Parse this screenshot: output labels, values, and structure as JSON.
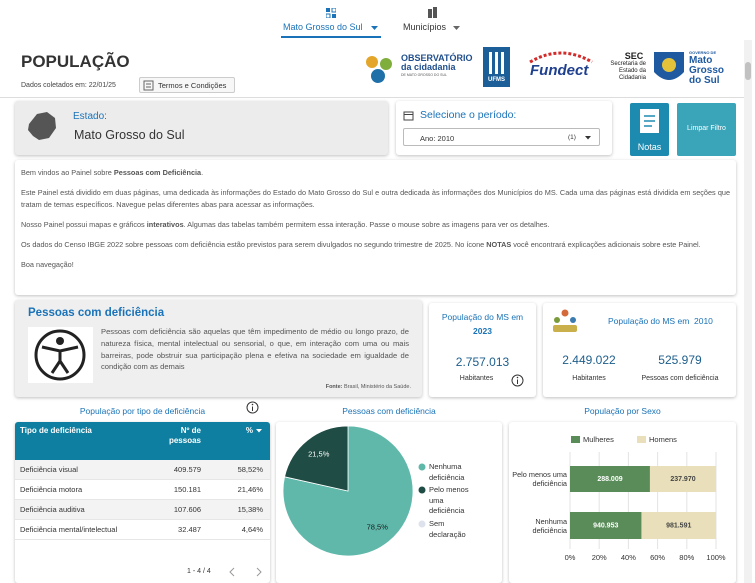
{
  "nav": {
    "tabs": [
      "Mato Grosso do Sul",
      "Municípios"
    ]
  },
  "header": {
    "title": "POPULAÇÃO",
    "date": "Dados coletados em: 22/01/25",
    "terms": "Termos e Condições"
  },
  "logos": {
    "observatorio": [
      "OBSERVATÓRIO",
      "da cidadania",
      "DE MATO GROSSO DO SUL"
    ],
    "ufms": "UFMS",
    "fundect": "Fundect",
    "sec": [
      "SEC",
      "Secretaria de",
      "Estado da",
      "Cidadania"
    ],
    "governo": [
      "GOVERNO DE",
      "Mato",
      "Grosso",
      "do Sul"
    ]
  },
  "state": {
    "label": "Estado:",
    "value": "Mato Grosso do Sul"
  },
  "period": {
    "label": "Selecione o período:",
    "value": "Ano: 2010",
    "count": "(1)"
  },
  "buttons": {
    "notes": "Notas",
    "clear": "Limpar Filtro"
  },
  "welcome": [
    [
      "Bem vindos ao Painel sobre ",
      "Pessoas com Deficiência",
      "."
    ],
    [
      "Este Painel está dividido em duas páginas, uma dedicada às informações do Estado do Mato Grosso do Sul e outra dedicada às informações dos Municípios do MS. Cada uma das páginas está dividida em seções que tratam de temas específicos. Navegue pelas diferentes abas para acessar as informações."
    ],
    [
      "Nosso Painel possui mapas e gráficos ",
      "interativos",
      ". Algumas das tabelas também permitem essa interação. Passe o mouse sobre as imagens para ver os detalhes."
    ],
    [
      "Os dados do Censo IBGE 2022 sobre pessoas com deficiência estão previstos para serem divulgados no segundo trimestre de 2025. No ícone ",
      "NOTAS",
      " você encontrará explicações adicionais sobre este Painel."
    ],
    [
      "Boa navegação!"
    ]
  ],
  "definition": {
    "title": "Pessoas com deficiência",
    "text": "Pessoas com deficiência são aquelas que têm impedimento de médio ou longo prazo, de natureza física, mental intelectual ou sensorial, o que, em interação com uma ou mais barreiras, pode obstruir sua participação plena e efetiva na sociedade em igualdade de condição com as demais",
    "source": [
      "Fonte:",
      " Brasil, Ministério da Saúde."
    ]
  },
  "kpi_2023": {
    "title": "População do MS em",
    "year": "2023",
    "value": "2.757.013",
    "label": "Habitantes"
  },
  "kpi_2010": {
    "title": "População do MS em  2010",
    "items": [
      {
        "value": "2.449.022",
        "label": "Habitantes"
      },
      {
        "value": "525.979",
        "label": "Pessoas com deficiência"
      }
    ]
  },
  "table": {
    "title": "População por tipo de deficiência",
    "columns": [
      "Tipo de deficiência",
      "Nº de pessoas",
      "%"
    ],
    "rows": [
      [
        "Deficiência visual",
        "409.579",
        "58,52%"
      ],
      [
        "Deficiência motora",
        "150.181",
        "21,46%"
      ],
      [
        "Deficiência auditiva",
        "107.606",
        "15,38%"
      ],
      [
        "Deficiência mental/intelectual",
        "32.487",
        "4,64%"
      ]
    ],
    "pagination": "1 - 4 / 4"
  },
  "pie_chart": {
    "type": "pie",
    "title": "Pessoas com deficiência",
    "categories": [
      "Nenhuma deficiência",
      "Pelo menos uma deficiência",
      "Sem declaração"
    ],
    "values": [
      78.5,
      21.5,
      0
    ],
    "value_labels": [
      "78,5%",
      "21,5%",
      null
    ],
    "colors": [
      "#5fb8aa",
      "#1f4c44",
      "#dde2ec"
    ]
  },
  "sex_chart": {
    "type": "bar",
    "stacked": "percent",
    "orientation": "horizontal",
    "title": "População por Sexo",
    "categories": [
      "Pelo menos uma deficiência",
      "Nenhuma deficiência"
    ],
    "series": [
      {
        "name": "Mulheres",
        "color": "#5a8c59",
        "values": [
          288009,
          940953
        ],
        "value_labels": [
          "288.009",
          "940.953"
        ]
      },
      {
        "name": "Homens",
        "color": "#e9e0bb",
        "values": [
          237970,
          981591
        ],
        "value_labels": [
          "237.970",
          "981.591"
        ]
      }
    ],
    "xlim": [
      0,
      100
    ],
    "xticks": [
      {
        "value": 0,
        "label": "0%"
      },
      {
        "value": 20,
        "label": "20%"
      },
      {
        "value": 40,
        "label": "40%"
      },
      {
        "value": 60,
        "label": "60%"
      },
      {
        "value": 80,
        "label": "80%"
      },
      {
        "value": 100,
        "label": "100%"
      }
    ],
    "grid": true
  }
}
